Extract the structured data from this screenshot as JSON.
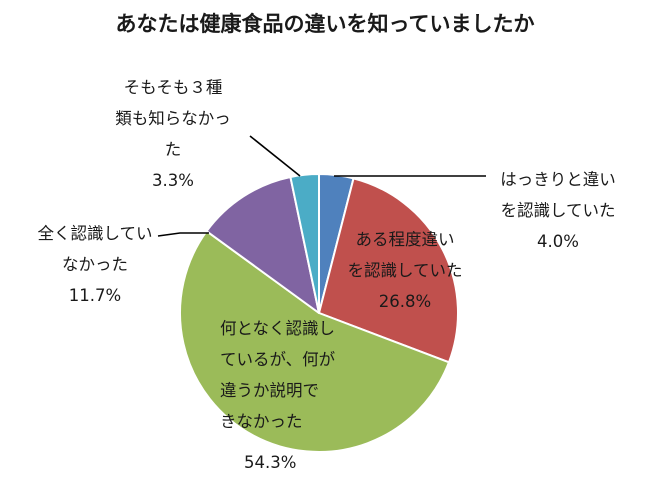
{
  "chart_data": {
    "type": "pie",
    "title": "あなたは健康食品の違いを知っていましたか",
    "slices": [
      {
        "label_lines": [
          "はっきりと違い",
          "を認識していた"
        ],
        "value": 4.0,
        "value_label": "4.0%",
        "color": "#4f81bd"
      },
      {
        "label_lines": [
          "ある程度違い",
          "を認識していた"
        ],
        "value": 26.8,
        "value_label": "26.8%",
        "color": "#c0504d"
      },
      {
        "label_lines": [
          "何となく認識し",
          "ているが、何が",
          "違うか説明で",
          "きなかった"
        ],
        "value": 54.3,
        "value_label": "54.3%",
        "color": "#9bbb59"
      },
      {
        "label_lines": [
          "全く認識してい",
          "なかった"
        ],
        "value": 11.7,
        "value_label": "11.7%",
        "color": "#8064a2"
      },
      {
        "label_lines": [
          "そもそも３種",
          "類も知らなかっ",
          "た"
        ],
        "value": 3.3,
        "value_label": "3.3%",
        "color": "#4bacc6"
      }
    ],
    "legend": "none",
    "start_angle": "top",
    "direction": "clockwise"
  }
}
